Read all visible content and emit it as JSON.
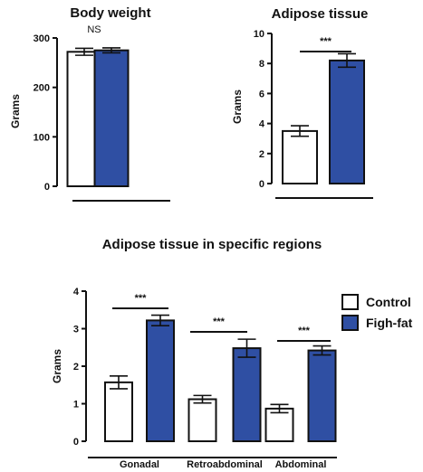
{
  "colors": {
    "control": "#ffffff",
    "high_fat": "#2f4fa3",
    "outline": "#111111"
  },
  "legend": {
    "items": [
      "Control",
      "Figh-fat"
    ]
  },
  "chart_data": [
    {
      "type": "bar",
      "title": "Body weight",
      "ylabel": "Grams",
      "ylim": [
        0,
        300
      ],
      "yticks": [
        "0",
        "100",
        "200",
        "300"
      ],
      "categories": [
        ""
      ],
      "series": [
        {
          "name": "Control",
          "values": [
            272
          ],
          "errors": [
            7
          ]
        },
        {
          "name": "Figh-fat",
          "values": [
            275
          ],
          "errors": [
            5
          ]
        }
      ],
      "annotations": [
        {
          "text": "NS"
        }
      ]
    },
    {
      "type": "bar",
      "title": "Adipose tissue",
      "ylabel": "Grams",
      "ylim": [
        0,
        10
      ],
      "yticks": [
        "0",
        "2",
        "4",
        "6",
        "8",
        "10"
      ],
      "categories": [
        ""
      ],
      "series": [
        {
          "name": "Control",
          "values": [
            3.5
          ],
          "errors": [
            0.35
          ]
        },
        {
          "name": "Figh-fat",
          "values": [
            8.2
          ],
          "errors": [
            0.45
          ]
        }
      ],
      "annotations": [
        {
          "text": "***"
        }
      ]
    },
    {
      "type": "bar",
      "title": "Adipose tissue in specific regions",
      "ylabel": "Grams",
      "ylim": [
        0,
        4
      ],
      "yticks": [
        "0",
        "1",
        "2",
        "3",
        "4"
      ],
      "categories": [
        "Gonadal",
        "Retroabdominal",
        "Abdominal"
      ],
      "series": [
        {
          "name": "Control",
          "values": [
            1.57,
            1.12,
            0.87
          ],
          "errors": [
            0.17,
            0.1,
            0.11
          ]
        },
        {
          "name": "Figh-fat",
          "values": [
            3.22,
            2.48,
            2.42
          ],
          "errors": [
            0.14,
            0.24,
            0.12
          ]
        }
      ],
      "annotations": [
        {
          "text": "***"
        },
        {
          "text": "***"
        },
        {
          "text": "***"
        }
      ]
    }
  ]
}
